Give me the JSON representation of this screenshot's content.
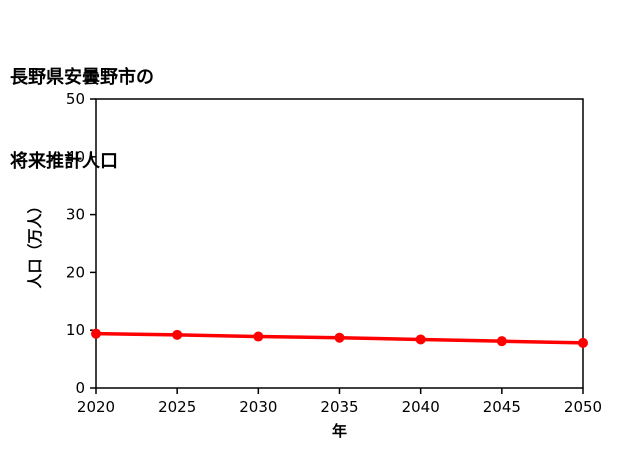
{
  "title": {
    "line1": "長野県安曇野市の",
    "line2": "将来推計人口"
  },
  "chart_data": {
    "type": "line",
    "title": "長野県安曇野市の将来推計人口",
    "x": [
      2020,
      2025,
      2030,
      2035,
      2040,
      2045,
      2050
    ],
    "series": [
      {
        "name": "将来推計人口",
        "values": [
          9.4,
          9.2,
          8.9,
          8.7,
          8.4,
          8.1,
          7.8
        ]
      }
    ],
    "xlabel": "年",
    "ylabel": "人口（万人）",
    "xticks": [
      2020,
      2025,
      2030,
      2035,
      2040,
      2045,
      2050
    ],
    "yticks": [
      0,
      10,
      20,
      30,
      40,
      50
    ],
    "ylim": [
      0,
      50
    ],
    "line_color": "#ff0000",
    "marker": "circle",
    "grid": false,
    "legend_position": "none"
  }
}
